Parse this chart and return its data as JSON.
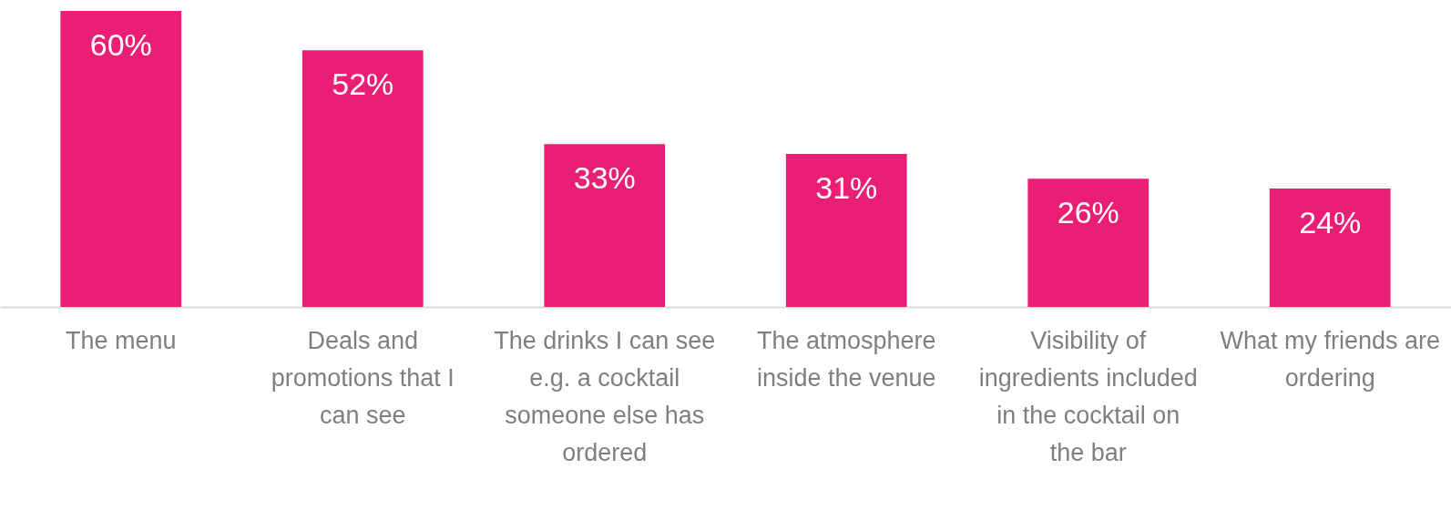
{
  "chart_data": {
    "type": "bar",
    "categories": [
      "The menu",
      "Deals and promotions that I can see",
      "The drinks I can see e.g. a cocktail someone else has ordered",
      "The atmosphere inside the venue",
      "Visibility of ingredients included in the cocktail on the bar",
      "What my friends are ordering"
    ],
    "values": [
      60,
      52,
      33,
      31,
      26,
      24
    ],
    "value_labels": [
      "60%",
      "52%",
      "33%",
      "31%",
      "26%",
      "24%"
    ],
    "color": "#e91e74"
  }
}
